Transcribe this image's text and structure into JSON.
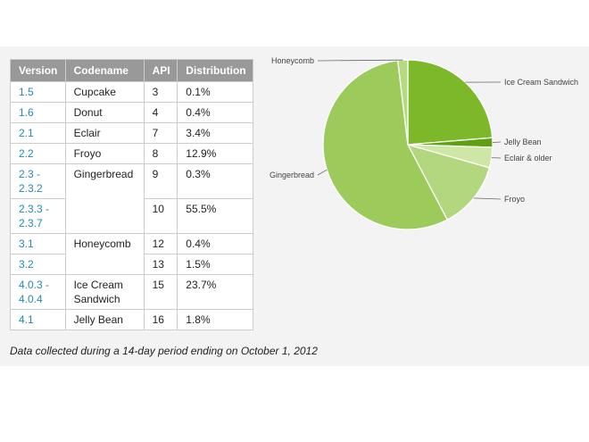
{
  "table": {
    "headers": [
      "Version",
      "Codename",
      "API",
      "Distribution"
    ],
    "groups": [
      {
        "codename": "Cupcake",
        "rows": [
          {
            "version": "1.5",
            "api": "3",
            "distribution": "0.1%"
          }
        ]
      },
      {
        "codename": "Donut",
        "rows": [
          {
            "version": "1.6",
            "api": "4",
            "distribution": "0.4%"
          }
        ]
      },
      {
        "codename": "Eclair",
        "rows": [
          {
            "version": "2.1",
            "api": "7",
            "distribution": "3.4%"
          }
        ]
      },
      {
        "codename": "Froyo",
        "rows": [
          {
            "version": "2.2",
            "api": "8",
            "distribution": "12.9%"
          }
        ]
      },
      {
        "codename": "Gingerbread",
        "rows": [
          {
            "version": "2.3 - 2.3.2",
            "api": "9",
            "distribution": "0.3%"
          },
          {
            "version": "2.3.3 - 2.3.7",
            "api": "10",
            "distribution": "55.5%"
          }
        ]
      },
      {
        "codename": "Honeycomb",
        "rows": [
          {
            "version": "3.1",
            "api": "12",
            "distribution": "0.4%"
          },
          {
            "version": "3.2",
            "api": "13",
            "distribution": "1.5%"
          }
        ]
      },
      {
        "codename": "Ice Cream Sandwich",
        "rows": [
          {
            "version": "4.0.3 - 4.0.4",
            "api": "15",
            "distribution": "23.7%"
          }
        ]
      },
      {
        "codename": "Jelly Bean",
        "rows": [
          {
            "version": "4.1",
            "api": "16",
            "distribution": "1.8%"
          }
        ]
      }
    ]
  },
  "footnote": "Data collected during a 14-day period ending on October 1, 2012",
  "chart_data": {
    "type": "pie",
    "slices": [
      {
        "label": "Ice Cream Sandwich",
        "value": 23.7,
        "color": "#7cb82a"
      },
      {
        "label": "Jelly Bean",
        "value": 1.8,
        "color": "#5ea012"
      },
      {
        "label": "Eclair & older",
        "value": 3.9,
        "color": "#cfe7a6"
      },
      {
        "label": "Froyo",
        "value": 12.9,
        "color": "#b3d77e"
      },
      {
        "label": "Gingerbread",
        "value": 55.8,
        "color": "#9ccb5c"
      },
      {
        "label": "Honeycomb",
        "value": 1.9,
        "color": "#b6da82"
      }
    ],
    "legend": "none (labels beside slices with leader lines)"
  }
}
